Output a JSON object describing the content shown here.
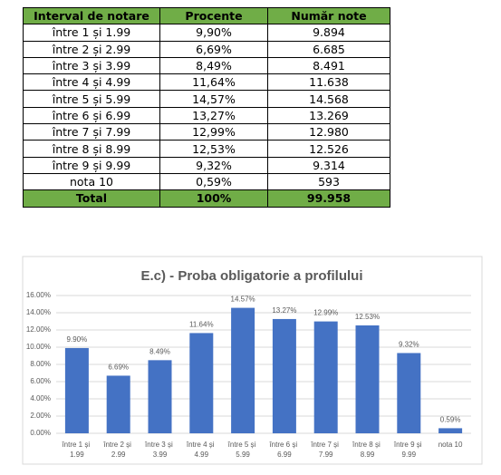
{
  "table": {
    "header": [
      "Interval de notare",
      "Procente",
      "Număr note"
    ],
    "rows": [
      [
        "între 1 și 1.99",
        "9,90%",
        "9.894"
      ],
      [
        "între 2 și 2.99",
        "6,69%",
        "6.685"
      ],
      [
        "între 3 și 3.99",
        "8,49%",
        "8.491"
      ],
      [
        "între 4 și 4.99",
        "11,64%",
        "11.638"
      ],
      [
        "între 5 și 5.99",
        "14,57%",
        "14.568"
      ],
      [
        "între 6 și 6.99",
        "13,27%",
        "13.269"
      ],
      [
        "între 7 și 7.99",
        "12,99%",
        "12.980"
      ],
      [
        "între 8 și 8.99",
        "12,53%",
        "12.526"
      ],
      [
        "între 9 și 9.99",
        "9,32%",
        "9.314"
      ],
      [
        "nota 10",
        "0,59%",
        "593"
      ]
    ],
    "total": [
      "Total",
      "100%",
      "99.958"
    ]
  },
  "chart_data": {
    "type": "bar",
    "title": "E.c) - Proba obligatorie a profilului",
    "categories": [
      "între 1 și 1.99",
      "între 2 și 2.99",
      "între 3 și 3.99",
      "între 4 și 4.99",
      "între 5 și 5.99",
      "între 6 și 6.99",
      "între 7 și 7.99",
      "între 8 și 8.99",
      "între 9 și 9.99",
      "nota 10"
    ],
    "values": [
      9.9,
      6.69,
      8.49,
      11.64,
      14.57,
      13.27,
      12.99,
      12.53,
      9.32,
      0.59
    ],
    "value_labels": [
      "9.90%",
      "6.69%",
      "8.49%",
      "11.64%",
      "14.57%",
      "13.27%",
      "12.99%",
      "12.53%",
      "9.32%",
      "0.59%"
    ],
    "color": "#4472c4",
    "ylim": [
      0,
      16
    ],
    "yticks": [
      {
        "value": 0,
        "label": "0.00%"
      },
      {
        "value": 2,
        "label": "2.00%"
      },
      {
        "value": 4,
        "label": "4.00%"
      },
      {
        "value": 6,
        "label": "6.00%"
      },
      {
        "value": 8,
        "label": "8.00%"
      },
      {
        "value": 10,
        "label": "10.00%"
      },
      {
        "value": 12,
        "label": "12.00%"
      },
      {
        "value": 14,
        "label": "14.00%"
      },
      {
        "value": 16,
        "label": "16.00%"
      }
    ],
    "grid": true
  }
}
